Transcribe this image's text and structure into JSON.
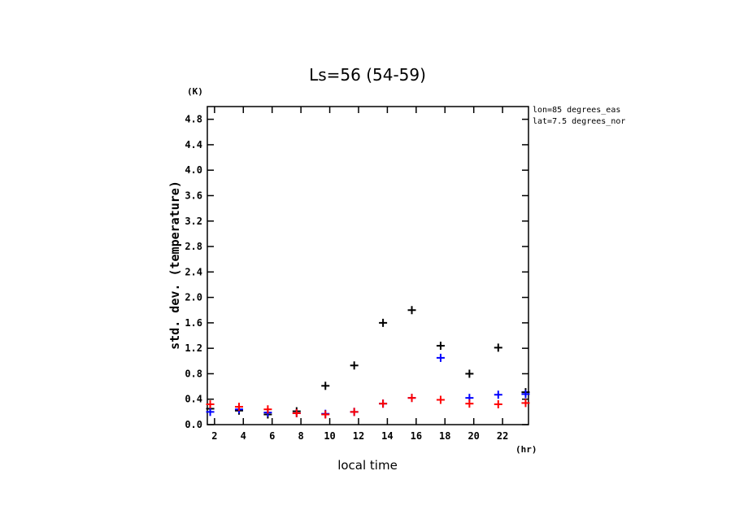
{
  "chart_data": {
    "type": "scatter",
    "title": "Ls=56 (54-59)",
    "xlabel": "local time",
    "ylabel": "std. dev. (temperature)",
    "x_unit": "(hr)",
    "y_unit": "(K)",
    "xlim": [
      1.5,
      23.8
    ],
    "ylim": [
      0,
      5.0
    ],
    "xticks": [
      2,
      4,
      6,
      8,
      10,
      12,
      14,
      16,
      18,
      20,
      22
    ],
    "yticks": [
      0.0,
      0.4,
      0.8,
      1.2,
      1.6,
      2.0,
      2.4,
      2.8,
      3.2,
      3.6,
      4.0,
      4.4,
      4.8
    ],
    "annotations": [
      "lon=85 degrees_eas",
      "lat=7.5 degrees_nor"
    ],
    "marker": "+",
    "series": [
      {
        "color": "#000000",
        "x": [
          1.7,
          3.7,
          5.7,
          7.7,
          9.7,
          11.7,
          13.7,
          15.7,
          17.7,
          19.7,
          21.7,
          23.6
        ],
        "values": [
          0.25,
          0.22,
          0.16,
          0.21,
          0.61,
          0.93,
          1.6,
          1.8,
          1.24,
          0.8,
          1.21,
          0.51
        ]
      },
      {
        "color": "#0000ff",
        "x": [
          1.7,
          3.7,
          5.7,
          7.7,
          9.7,
          11.7,
          13.7,
          15.7,
          17.7,
          19.7,
          21.7,
          23.6
        ],
        "values": [
          0.2,
          0.24,
          0.19,
          0.18,
          0.17,
          0.2,
          0.33,
          0.42,
          1.05,
          0.42,
          0.47,
          0.48
        ]
      },
      {
        "color": "#ff0000",
        "x": [
          1.7,
          3.7,
          5.7,
          7.7,
          9.7,
          11.7,
          13.7,
          15.7,
          17.7,
          19.7,
          21.7,
          23.6
        ],
        "values": [
          0.32,
          0.28,
          0.24,
          0.18,
          0.16,
          0.2,
          0.33,
          0.42,
          0.39,
          0.33,
          0.32,
          0.34
        ]
      }
    ]
  }
}
